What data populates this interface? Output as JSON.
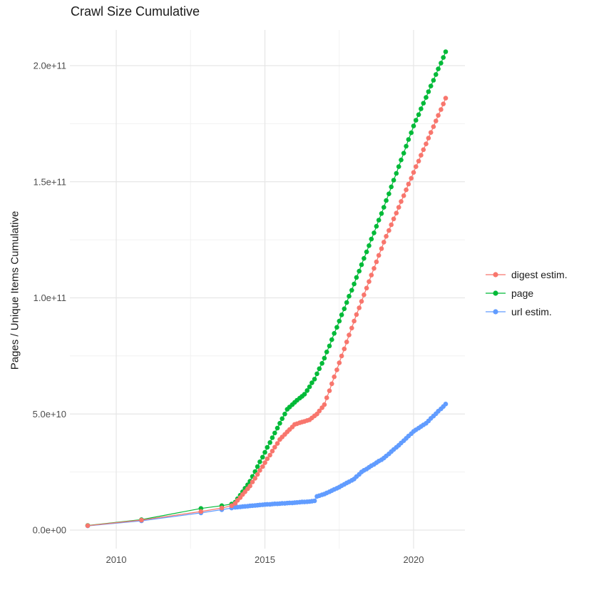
{
  "chart_data": {
    "type": "line",
    "title": "Crawl Size Cumulative",
    "xlabel": "",
    "ylabel": "Pages / Unique Items Cumulative",
    "value_unit": "1e10 (point values below are in units of 10 billion)",
    "grid": true,
    "legend_position": "right",
    "x_range_shown": [
      2008.4,
      2021.7
    ],
    "y_range_shown": [
      -0.9,
      21.6
    ],
    "x_ticks": [
      {
        "v": 2010,
        "label": "2010"
      },
      {
        "v": 2015,
        "label": "2015"
      },
      {
        "v": 2020,
        "label": "2020"
      }
    ],
    "y_ticks": [
      {
        "v": 0,
        "label": "0.0e+00"
      },
      {
        "v": 5,
        "label": "5.0e+10"
      },
      {
        "v": 10,
        "label": "1.0e+11"
      },
      {
        "v": 15,
        "label": "1.5e+11"
      },
      {
        "v": 20,
        "label": "2.0e+11"
      }
    ],
    "x_minor_gridlines": [
      2012.5,
      2017.5
    ],
    "y_minor_gridlines": [
      2.5,
      7.5,
      12.5,
      17.5
    ],
    "series": [
      {
        "label": "digest estim.",
        "color": "#F8766D",
        "points": [
          [
            2009.04,
            0.19
          ],
          [
            2010.85,
            0.43
          ],
          [
            2012.85,
            0.8
          ],
          [
            2013.55,
            0.95
          ],
          [
            2013.88,
            1.05
          ],
          [
            2014.0,
            1.15
          ],
          [
            2014.08,
            1.28
          ],
          [
            2014.17,
            1.4
          ],
          [
            2014.25,
            1.53
          ],
          [
            2014.33,
            1.65
          ],
          [
            2014.42,
            1.78
          ],
          [
            2014.5,
            1.9
          ],
          [
            2014.58,
            2.07
          ],
          [
            2014.67,
            2.23
          ],
          [
            2014.75,
            2.4
          ],
          [
            2014.83,
            2.57
          ],
          [
            2014.92,
            2.73
          ],
          [
            2015.0,
            2.9
          ],
          [
            2015.08,
            3.07
          ],
          [
            2015.17,
            3.23
          ],
          [
            2015.25,
            3.4
          ],
          [
            2015.33,
            3.57
          ],
          [
            2015.42,
            3.73
          ],
          [
            2015.5,
            3.9
          ],
          [
            2015.58,
            4.01
          ],
          [
            2015.67,
            4.12
          ],
          [
            2015.75,
            4.23
          ],
          [
            2015.83,
            4.33
          ],
          [
            2015.92,
            4.44
          ],
          [
            2016.0,
            4.55
          ],
          [
            2016.08,
            4.58
          ],
          [
            2016.17,
            4.62
          ],
          [
            2016.25,
            4.65
          ],
          [
            2016.33,
            4.68
          ],
          [
            2016.42,
            4.72
          ],
          [
            2016.5,
            4.75
          ],
          [
            2016.58,
            4.83
          ],
          [
            2016.67,
            4.92
          ],
          [
            2016.75,
            5.0
          ],
          [
            2016.83,
            5.13
          ],
          [
            2016.92,
            5.27
          ],
          [
            2017.0,
            5.4
          ],
          [
            2017.08,
            5.7
          ],
          [
            2017.17,
            6.0
          ],
          [
            2017.25,
            6.3
          ],
          [
            2017.33,
            6.6
          ],
          [
            2017.42,
            6.9
          ],
          [
            2017.5,
            7.2
          ],
          [
            2017.58,
            7.5
          ],
          [
            2017.67,
            7.8
          ],
          [
            2017.75,
            8.1
          ],
          [
            2017.83,
            8.4
          ],
          [
            2017.92,
            8.7
          ],
          [
            2018.0,
            9.0
          ],
          [
            2018.08,
            9.28
          ],
          [
            2018.17,
            9.57
          ],
          [
            2018.25,
            9.85
          ],
          [
            2018.33,
            10.13
          ],
          [
            2018.42,
            10.42
          ],
          [
            2018.5,
            10.7
          ],
          [
            2018.58,
            10.98
          ],
          [
            2018.67,
            11.27
          ],
          [
            2018.75,
            11.55
          ],
          [
            2018.83,
            11.83
          ],
          [
            2018.92,
            12.12
          ],
          [
            2019.0,
            12.4
          ],
          [
            2019.08,
            12.65
          ],
          [
            2019.17,
            12.9
          ],
          [
            2019.25,
            13.15
          ],
          [
            2019.33,
            13.4
          ],
          [
            2019.42,
            13.65
          ],
          [
            2019.5,
            13.9
          ],
          [
            2019.58,
            14.15
          ],
          [
            2019.67,
            14.4
          ],
          [
            2019.75,
            14.65
          ],
          [
            2019.83,
            14.9
          ],
          [
            2019.92,
            15.15
          ],
          [
            2020.0,
            15.4
          ],
          [
            2020.08,
            15.65
          ],
          [
            2020.17,
            15.89
          ],
          [
            2020.25,
            16.14
          ],
          [
            2020.33,
            16.38
          ],
          [
            2020.42,
            16.63
          ],
          [
            2020.5,
            16.88
          ],
          [
            2020.58,
            17.12
          ],
          [
            2020.67,
            17.37
          ],
          [
            2020.75,
            17.62
          ],
          [
            2020.83,
            17.86
          ],
          [
            2020.92,
            18.11
          ],
          [
            2021.0,
            18.35
          ],
          [
            2021.08,
            18.6
          ]
        ]
      },
      {
        "label": "page",
        "color": "#00BA38",
        "points": [
          [
            2009.04,
            0.2
          ],
          [
            2010.85,
            0.45
          ],
          [
            2012.85,
            0.93
          ],
          [
            2013.55,
            1.05
          ],
          [
            2013.88,
            1.12
          ],
          [
            2014.0,
            1.2
          ],
          [
            2014.08,
            1.35
          ],
          [
            2014.17,
            1.5
          ],
          [
            2014.25,
            1.65
          ],
          [
            2014.33,
            1.8
          ],
          [
            2014.42,
            1.95
          ],
          [
            2014.5,
            2.1
          ],
          [
            2014.58,
            2.31
          ],
          [
            2014.67,
            2.52
          ],
          [
            2014.75,
            2.73
          ],
          [
            2014.83,
            2.94
          ],
          [
            2014.92,
            3.14
          ],
          [
            2015.0,
            3.35
          ],
          [
            2015.08,
            3.56
          ],
          [
            2015.17,
            3.77
          ],
          [
            2015.25,
            3.98
          ],
          [
            2015.33,
            4.18
          ],
          [
            2015.42,
            4.39
          ],
          [
            2015.5,
            4.6
          ],
          [
            2015.58,
            4.8
          ],
          [
            2015.67,
            5.0
          ],
          [
            2015.75,
            5.2
          ],
          [
            2015.83,
            5.3
          ],
          [
            2015.92,
            5.4
          ],
          [
            2016.0,
            5.5
          ],
          [
            2016.08,
            5.59
          ],
          [
            2016.17,
            5.68
          ],
          [
            2016.25,
            5.76
          ],
          [
            2016.33,
            5.85
          ],
          [
            2016.42,
            6.01
          ],
          [
            2016.5,
            6.17
          ],
          [
            2016.58,
            6.34
          ],
          [
            2016.67,
            6.5
          ],
          [
            2016.75,
            6.73
          ],
          [
            2016.83,
            6.95
          ],
          [
            2016.92,
            7.18
          ],
          [
            2017.0,
            7.4
          ],
          [
            2017.08,
            7.67
          ],
          [
            2017.17,
            7.93
          ],
          [
            2017.25,
            8.2
          ],
          [
            2017.33,
            8.47
          ],
          [
            2017.42,
            8.73
          ],
          [
            2017.5,
            9.0
          ],
          [
            2017.58,
            9.27
          ],
          [
            2017.67,
            9.53
          ],
          [
            2017.75,
            9.8
          ],
          [
            2017.83,
            10.07
          ],
          [
            2017.92,
            10.33
          ],
          [
            2018.0,
            10.6
          ],
          [
            2018.08,
            10.88
          ],
          [
            2018.17,
            11.15
          ],
          [
            2018.25,
            11.43
          ],
          [
            2018.33,
            11.7
          ],
          [
            2018.42,
            11.98
          ],
          [
            2018.5,
            12.25
          ],
          [
            2018.58,
            12.53
          ],
          [
            2018.67,
            12.8
          ],
          [
            2018.75,
            13.08
          ],
          [
            2018.83,
            13.35
          ],
          [
            2018.92,
            13.63
          ],
          [
            2019.0,
            13.9
          ],
          [
            2019.08,
            14.19
          ],
          [
            2019.17,
            14.48
          ],
          [
            2019.25,
            14.78
          ],
          [
            2019.33,
            15.07
          ],
          [
            2019.42,
            15.36
          ],
          [
            2019.5,
            15.65
          ],
          [
            2019.58,
            15.94
          ],
          [
            2019.67,
            16.23
          ],
          [
            2019.75,
            16.53
          ],
          [
            2019.83,
            16.82
          ],
          [
            2019.92,
            17.11
          ],
          [
            2020.0,
            17.4
          ],
          [
            2020.08,
            17.65
          ],
          [
            2020.17,
            17.89
          ],
          [
            2020.25,
            18.14
          ],
          [
            2020.33,
            18.38
          ],
          [
            2020.42,
            18.63
          ],
          [
            2020.5,
            18.88
          ],
          [
            2020.58,
            19.12
          ],
          [
            2020.67,
            19.37
          ],
          [
            2020.75,
            19.62
          ],
          [
            2020.83,
            19.86
          ],
          [
            2020.92,
            20.11
          ],
          [
            2021.0,
            20.35
          ],
          [
            2021.08,
            20.6
          ]
        ]
      },
      {
        "label": "url estim.",
        "color": "#619CFF",
        "points": [
          [
            2009.04,
            0.18
          ],
          [
            2010.85,
            0.4
          ],
          [
            2012.85,
            0.74
          ],
          [
            2013.55,
            0.88
          ],
          [
            2013.88,
            0.95
          ],
          [
            2014.0,
            0.98
          ],
          [
            2014.08,
            0.99
          ],
          [
            2014.17,
            1.0
          ],
          [
            2014.25,
            1.01
          ],
          [
            2014.33,
            1.02
          ],
          [
            2014.42,
            1.03
          ],
          [
            2014.5,
            1.04
          ],
          [
            2014.58,
            1.05
          ],
          [
            2014.67,
            1.06
          ],
          [
            2014.75,
            1.07
          ],
          [
            2014.83,
            1.08
          ],
          [
            2014.92,
            1.09
          ],
          [
            2015.0,
            1.1
          ],
          [
            2015.08,
            1.11
          ],
          [
            2015.17,
            1.11
          ],
          [
            2015.25,
            1.12
          ],
          [
            2015.33,
            1.13
          ],
          [
            2015.42,
            1.13
          ],
          [
            2015.5,
            1.14
          ],
          [
            2015.58,
            1.15
          ],
          [
            2015.67,
            1.15
          ],
          [
            2015.75,
            1.16
          ],
          [
            2015.83,
            1.17
          ],
          [
            2015.92,
            1.17
          ],
          [
            2016.0,
            1.18
          ],
          [
            2016.08,
            1.19
          ],
          [
            2016.17,
            1.2
          ],
          [
            2016.25,
            1.21
          ],
          [
            2016.33,
            1.21
          ],
          [
            2016.42,
            1.22
          ],
          [
            2016.5,
            1.23
          ],
          [
            2016.58,
            1.24
          ],
          [
            2016.67,
            1.26
          ],
          [
            2016.75,
            1.45
          ],
          [
            2016.83,
            1.48
          ],
          [
            2016.92,
            1.52
          ],
          [
            2017.0,
            1.55
          ],
          [
            2017.08,
            1.6
          ],
          [
            2017.17,
            1.65
          ],
          [
            2017.25,
            1.7
          ],
          [
            2017.33,
            1.75
          ],
          [
            2017.42,
            1.8
          ],
          [
            2017.5,
            1.85
          ],
          [
            2017.58,
            1.91
          ],
          [
            2017.67,
            1.97
          ],
          [
            2017.75,
            2.03
          ],
          [
            2017.83,
            2.08
          ],
          [
            2017.92,
            2.14
          ],
          [
            2018.0,
            2.2
          ],
          [
            2018.08,
            2.3
          ],
          [
            2018.17,
            2.4
          ],
          [
            2018.25,
            2.5
          ],
          [
            2018.33,
            2.57
          ],
          [
            2018.42,
            2.63
          ],
          [
            2018.5,
            2.7
          ],
          [
            2018.58,
            2.77
          ],
          [
            2018.67,
            2.83
          ],
          [
            2018.75,
            2.9
          ],
          [
            2018.83,
            2.97
          ],
          [
            2018.92,
            3.03
          ],
          [
            2019.0,
            3.1
          ],
          [
            2019.08,
            3.19
          ],
          [
            2019.17,
            3.28
          ],
          [
            2019.25,
            3.38
          ],
          [
            2019.33,
            3.47
          ],
          [
            2019.42,
            3.56
          ],
          [
            2019.5,
            3.65
          ],
          [
            2019.58,
            3.75
          ],
          [
            2019.67,
            3.85
          ],
          [
            2019.75,
            3.95
          ],
          [
            2019.83,
            4.05
          ],
          [
            2019.92,
            4.15
          ],
          [
            2020.0,
            4.25
          ],
          [
            2020.08,
            4.32
          ],
          [
            2020.17,
            4.39
          ],
          [
            2020.25,
            4.46
          ],
          [
            2020.33,
            4.53
          ],
          [
            2020.42,
            4.6
          ],
          [
            2020.5,
            4.7
          ],
          [
            2020.58,
            4.81
          ],
          [
            2020.67,
            4.91
          ],
          [
            2020.75,
            5.01
          ],
          [
            2020.83,
            5.12
          ],
          [
            2020.92,
            5.22
          ],
          [
            2021.0,
            5.32
          ],
          [
            2021.08,
            5.43
          ]
        ]
      }
    ]
  }
}
